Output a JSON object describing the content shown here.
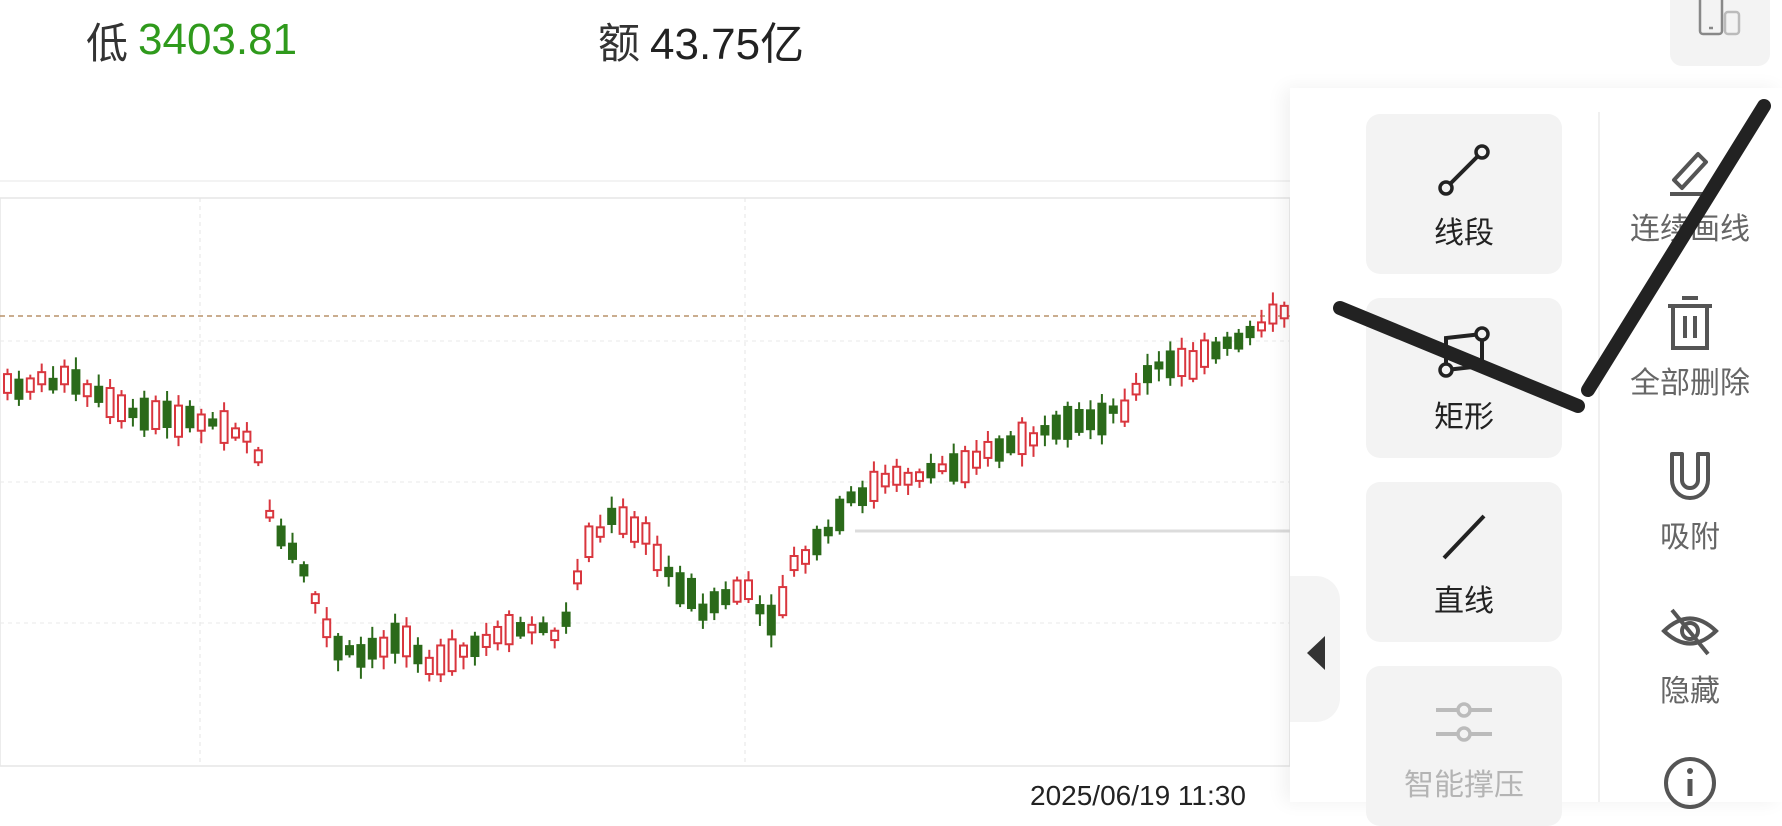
{
  "stats": {
    "low_label": "低",
    "low_value": "3403.81",
    "amount_label": "额",
    "amount_value": "43.75亿"
  },
  "chart": {
    "date_label": "2025/06/19 11:30",
    "up_color": "#d9363e",
    "down_color": "#2b6a1a"
  },
  "tools": [
    {
      "label": "线段",
      "icon": "line-segment-icon",
      "enabled": true
    },
    {
      "label": "矩形",
      "icon": "rectangle-icon",
      "enabled": true
    },
    {
      "label": "直线",
      "icon": "straight-line-icon",
      "enabled": true
    },
    {
      "label": "智能撑压",
      "icon": "sliders-icon",
      "enabled": false
    }
  ],
  "side_tools": [
    {
      "label": "连续画线",
      "icon": "pencil-icon"
    },
    {
      "label": "全部删除",
      "icon": "trash-icon"
    },
    {
      "label": "吸附",
      "icon": "magnet-icon"
    },
    {
      "label": "隐藏",
      "icon": "eye-off-icon"
    },
    {
      "label": "",
      "icon": "info-icon"
    }
  ],
  "colors": {
    "price_low": "#2f9a1c",
    "accent_panel": "#f3f3f3"
  }
}
